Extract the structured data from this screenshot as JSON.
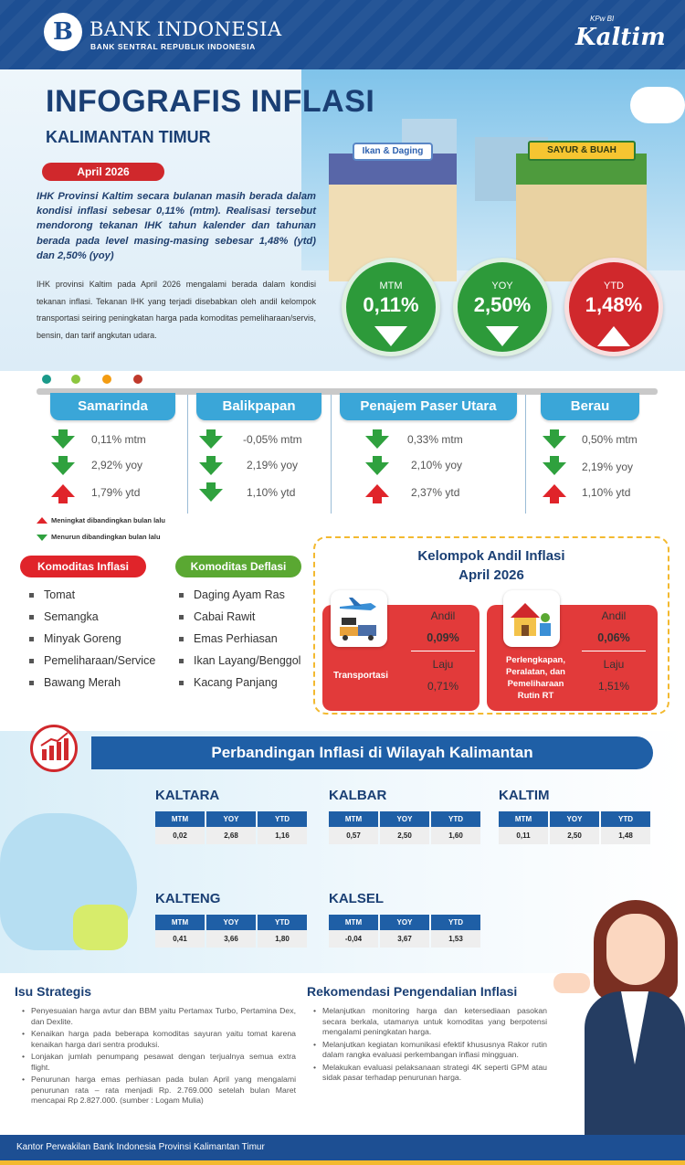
{
  "header": {
    "logo_mark": "B",
    "bank_name": "BANK INDONESIA",
    "bank_sub": "BANK SENTRAL REPUBLIK INDONESIA",
    "kpw_prefix": "KPw BI",
    "kpw_name": "Kaltim"
  },
  "hero": {
    "title": "INFOGRAFIS INFLASI",
    "subtitle": "KALIMANTAN TIMUR",
    "month": "April 2026",
    "lead": "IHK Provinsi Kaltim secara bulanan masih berada dalam kondisi inflasi sebesar 0,11% (mtm). Realisasi tersebut mendorong tekanan IHK tahun kalender dan tahunan berada pada level masing-masing sebesar 1,48% (ytd) dan 2,50% (yoy)",
    "body": "IHK provinsi Kaltim pada April 2026 mengalami berada dalam kondisi tekanan inflasi. Tekanan IHK yang terjadi disebabkan oleh andil kelompok transportasi seiring peningkatan harga pada komoditas pemeliharaan/servis, bensin, dan tarif angkutan udara.",
    "sign_ikan": "Ikan & Daging",
    "sign_sayur": "SAYUR & BUAH"
  },
  "indicators": [
    {
      "label": "MTM",
      "value": "0,11%",
      "direction": "down",
      "color": "#2d9a3a"
    },
    {
      "label": "YOY",
      "value": "2,50%",
      "direction": "down",
      "color": "#2d9a3a"
    },
    {
      "label": "YTD",
      "value": "1,48%",
      "direction": "up",
      "color": "#d0282c"
    }
  ],
  "dots": [
    "#1a9a8a",
    "#8cc63f",
    "#f39c12",
    "#c0392b"
  ],
  "regions": [
    {
      "name": "Samarinda",
      "rows": [
        {
          "text": "0,11% mtm",
          "dir": "down"
        },
        {
          "text": "2,92% yoy",
          "dir": "down"
        },
        {
          "text": "1,79% ytd",
          "dir": "up"
        }
      ]
    },
    {
      "name": "Balikpapan",
      "rows": [
        {
          "text": "-0,05% mtm",
          "dir": "down"
        },
        {
          "text": "2,19% yoy",
          "dir": "down"
        },
        {
          "text": "1,10% ytd",
          "dir": "down"
        }
      ]
    },
    {
      "name": "Penajem Paser Utara",
      "rows": [
        {
          "text": "0,33% mtm",
          "dir": "down"
        },
        {
          "text": "2,10% yoy",
          "dir": "down"
        },
        {
          "text": "2,37% ytd",
          "dir": "up"
        }
      ]
    },
    {
      "name": "Berau",
      "rows": [
        {
          "text": "0,50% mtm",
          "dir": "down"
        },
        {
          "text": "2,19% yoy",
          "dir": "down"
        },
        {
          "text": "1,10% ytd",
          "dir": "up"
        }
      ]
    }
  ],
  "legend": {
    "up": "Meningkat dibandingkan bulan lalu",
    "down": "Menurun dibandingkan bulan lalu"
  },
  "komoditas_inflasi": {
    "label": "Komoditas Inflasi",
    "items": [
      "Tomat",
      "Semangka",
      "Minyak Goreng",
      "Pemeliharaan/Service",
      "Bawang Merah"
    ]
  },
  "komoditas_deflasi": {
    "label": "Komoditas Deflasi",
    "items": [
      "Daging Ayam Ras",
      "Cabai Rawit",
      "Emas Perhiasan",
      "Ikan Layang/Benggol",
      "Kacang Panjang"
    ]
  },
  "kelompok": {
    "title_line1": "Kelompok Andil Inflasi",
    "title_line2": "April 2026",
    "cards": [
      {
        "name": "Transportasi",
        "andil_label": "Andil",
        "andil": "0,09%",
        "laju_label": "Laju",
        "laju": "0,71%",
        "icon": "transport-icon"
      },
      {
        "name": "Perlengkapan, Peralatan, dan Pemeliharaan Rutin RT",
        "andil_label": "Andil",
        "andil": "0,06%",
        "laju_label": "Laju",
        "laju": "1,51%",
        "icon": "house-icon"
      }
    ]
  },
  "comparison": {
    "title": "Perbandingan  Inflasi di Wilayah Kalimantan",
    "headers": [
      "MTM",
      "YOY",
      "YTD"
    ],
    "provinces": [
      {
        "name": "KALTARA",
        "values": [
          "0,02",
          "2,68",
          "1,16"
        ]
      },
      {
        "name": "KALBAR",
        "values": [
          "0,57",
          "2,50",
          "1,60"
        ]
      },
      {
        "name": "KALTIM",
        "values": [
          "0,11",
          "2,50",
          "1,48"
        ]
      },
      {
        "name": "KALTENG",
        "values": [
          "0,41",
          "3,66",
          "1,80"
        ]
      },
      {
        "name": "KALSEL",
        "values": [
          "-0,04",
          "3,67",
          "1,53"
        ]
      }
    ]
  },
  "isu": {
    "title": "Isu Strategis",
    "items": [
      "Penyesuaian harga avtur dan BBM yaitu Pertamax Turbo, Pertamina Dex, dan Dexlite.",
      "Kenaikan harga pada beberapa komoditas sayuran yaitu tomat karena kenaikan harga dari sentra produksi.",
      "Lonjakan jumlah penumpang pesawat dengan terjualnya semua extra flight.",
      "Penurunan harga emas perhiasan pada bulan April yang mengalami penurunan rata – rata menjadi Rp. 2.769.000 setelah bulan Maret mencapai Rp 2.827.000. (sumber : Logam Mulia)"
    ]
  },
  "rekomendasi": {
    "title": "Rekomendasi Pengendalian Inflasi",
    "items": [
      "Melanjutkan monitoring harga dan ketersediaan pasokan secara berkala, utamanya untuk komoditas yang berpotensi mengalami peningkatan harga.",
      "Melanjutkan kegiatan komunikasi efektif khususnya Rakor rutin dalam rangka evaluasi perkembangan inflasi mingguan.",
      "Melakukan evaluasi pelaksanaan strategi 4K seperti GPM atau sidak pasar terhadap penurunan harga."
    ]
  },
  "footer": "Kantor Perwakilan Bank Indonesia Provinsi Kalimantan Timur"
}
